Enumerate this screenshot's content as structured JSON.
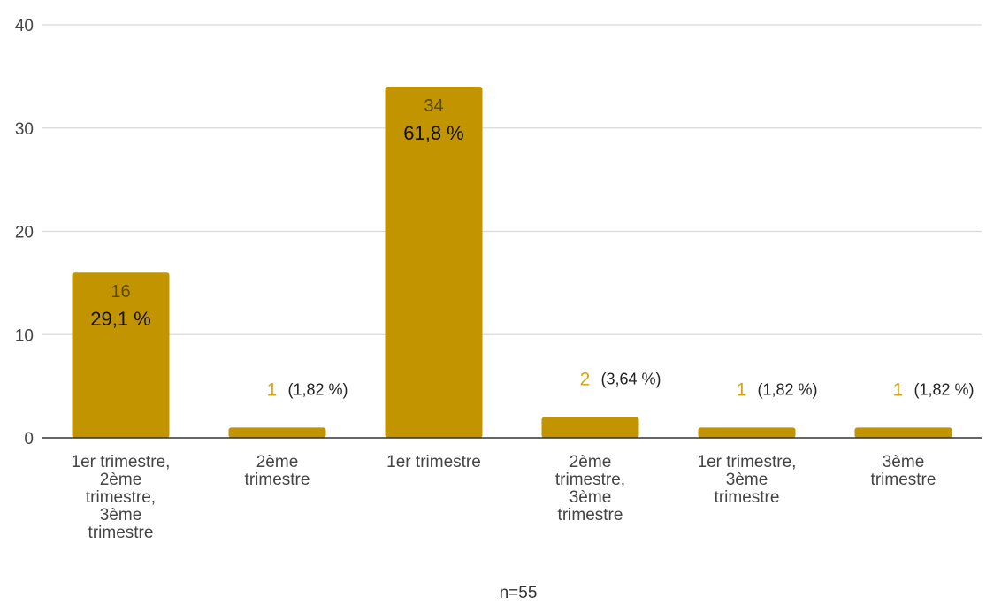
{
  "colors": {
    "bar": "#c29500",
    "value_outside": "#d9a514"
  },
  "chart_data": {
    "type": "bar",
    "categories": [
      "1er trimestre,\n2ème\ntrimestre,\n3ème\ntrimestre",
      "2ème\ntrimestre",
      "1er trimestre",
      "2ème\ntrimestre,\n3ème\ntrimestre",
      "1er trimestre,\n3ème\ntrimestre",
      "3ème\ntrimestre"
    ],
    "values": [
      16,
      1,
      34,
      2,
      1,
      1
    ],
    "value_labels": [
      "16",
      "1",
      "34",
      "2",
      "1",
      "1"
    ],
    "percent_labels": [
      "29,1 %",
      "(1,82 %)",
      "61,8 %",
      "(3,64 %)",
      "(1,82 %)",
      "(1,82 %)"
    ],
    "ylim": [
      0,
      40
    ],
    "yticks": [
      0,
      10,
      20,
      30,
      40
    ],
    "grid": true,
    "title": "",
    "xlabel": "",
    "ylabel": "",
    "note": "n=55"
  }
}
